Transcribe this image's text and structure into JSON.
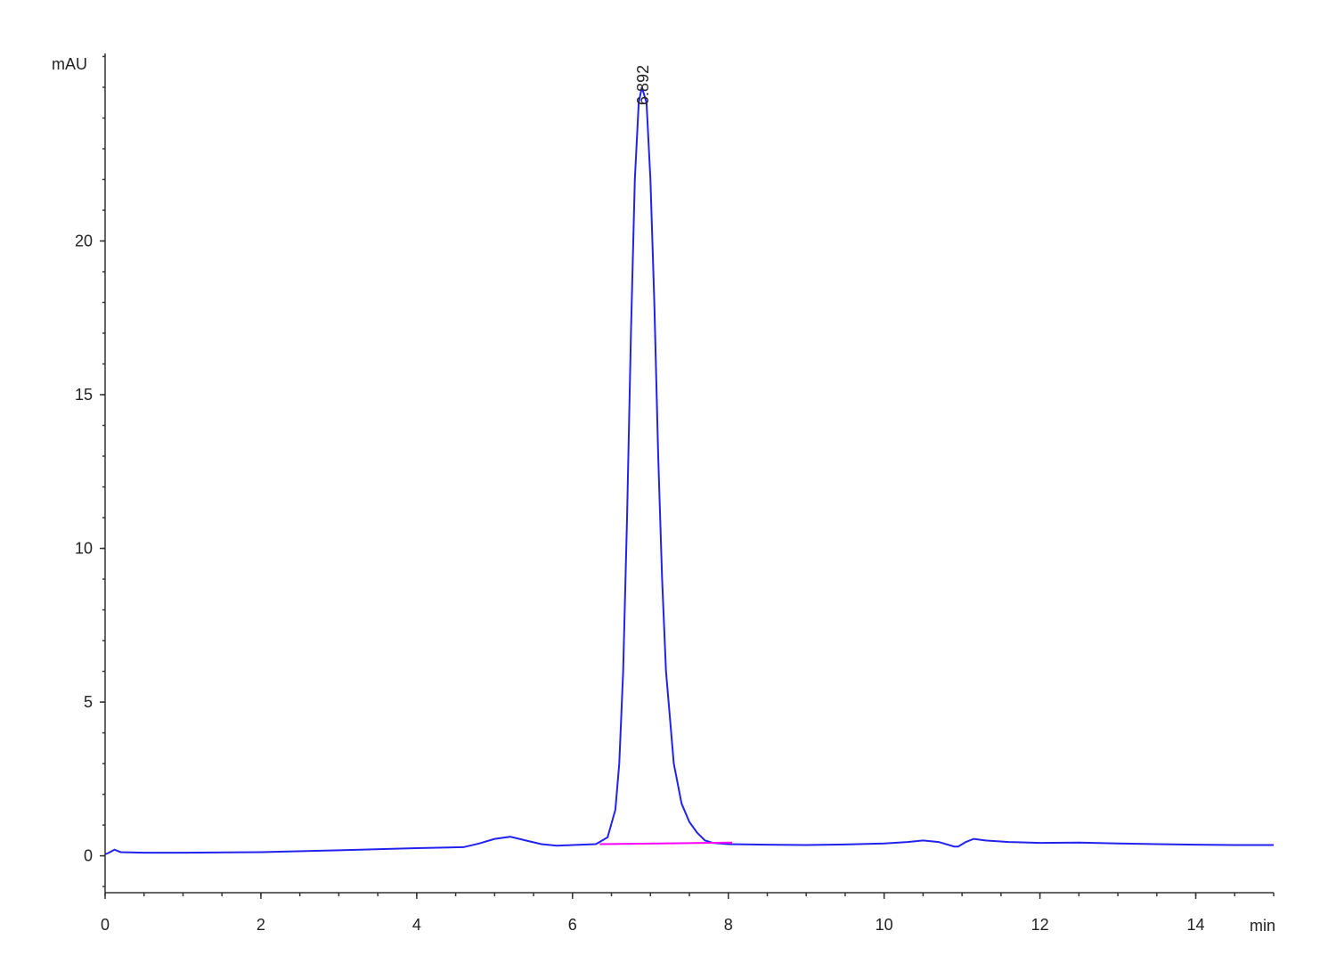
{
  "chart_data": {
    "type": "line",
    "y_label": "mAU",
    "x_label": "min",
    "xlim": [
      0,
      15
    ],
    "ylim": [
      -1.2,
      26.1
    ],
    "xticks": [
      0,
      2,
      4,
      6,
      8,
      10,
      12,
      14
    ],
    "yticks": [
      0,
      5,
      10,
      15,
      20
    ],
    "grid": false,
    "series": [
      {
        "color": "#2222ee",
        "x": [
          0,
          0.05,
          0.12,
          0.2,
          0.5,
          1,
          2,
          3,
          4,
          4.6,
          4.8,
          5,
          5.2,
          5.4,
          5.6,
          5.8,
          6,
          6.3,
          6.45,
          6.55,
          6.6,
          6.65,
          6.7,
          6.75,
          6.8,
          6.85,
          6.89,
          6.95,
          7.0,
          7.05,
          7.1,
          7.15,
          7.2,
          7.3,
          7.4,
          7.5,
          7.6,
          7.7,
          7.8,
          8,
          8.5,
          9,
          9.5,
          10,
          10.3,
          10.5,
          10.7,
          10.9,
          10.95,
          11.05,
          11.15,
          11.3,
          11.6,
          12,
          12.5,
          13,
          13.5,
          14,
          14.5,
          15
        ],
        "values": [
          0.05,
          0.1,
          0.2,
          0.12,
          0.1,
          0.1,
          0.12,
          0.18,
          0.25,
          0.28,
          0.4,
          0.55,
          0.62,
          0.5,
          0.38,
          0.33,
          0.35,
          0.38,
          0.6,
          1.5,
          3,
          6,
          11,
          17,
          22,
          24.5,
          25.0,
          24.5,
          22,
          18,
          13,
          9,
          6,
          3,
          1.7,
          1.1,
          0.75,
          0.5,
          0.42,
          0.38,
          0.36,
          0.35,
          0.37,
          0.4,
          0.45,
          0.5,
          0.45,
          0.3,
          0.3,
          0.45,
          0.55,
          0.5,
          0.45,
          0.42,
          0.43,
          0.4,
          0.38,
          0.36,
          0.35,
          0.35
        ]
      },
      {
        "color": "#ff00ff",
        "x": [
          6.35,
          8.05
        ],
        "values": [
          0.38,
          0.43
        ]
      }
    ],
    "annotations": [
      {
        "x": 6.892,
        "y": 25.0,
        "text": "6.892"
      }
    ]
  }
}
